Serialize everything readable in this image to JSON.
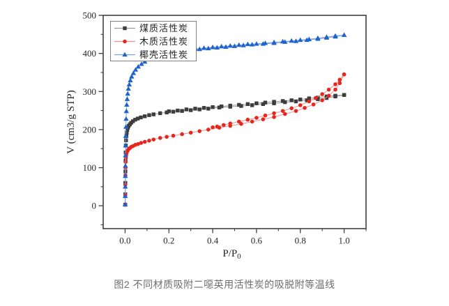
{
  "figure": {
    "caption": "图2 不同材质吸附二噁英用活性炭的吸脱附等温线"
  },
  "chart_data": {
    "type": "scatter",
    "title": "",
    "xlabel": "P/P",
    "xlabel_subscript": "0",
    "ylabel": "V (cm3/g STP)",
    "xlim": [
      -0.1,
      1.1
    ],
    "ylim": [
      -60,
      500
    ],
    "grid": false,
    "legend_position": "top-left",
    "x_major_ticks": [
      0.0,
      0.2,
      0.4,
      0.6,
      0.8,
      1.0
    ],
    "x_tick_labels": [
      "0.0",
      "0.2",
      "0.4",
      "0.6",
      "0.8",
      "1.0"
    ],
    "x_minor_ticks": [
      0.1,
      0.3,
      0.5,
      0.7,
      0.9,
      1.1
    ],
    "y_major_ticks": [
      0,
      100,
      200,
      300,
      400,
      500
    ],
    "y_tick_labels": [
      "0",
      "100",
      "200",
      "300",
      "400",
      "500"
    ],
    "y_minor_ticks": [
      -50,
      50,
      150,
      250,
      350,
      450
    ],
    "axis_color": "#3f3f3f",
    "tick_label_color": "#262626",
    "series": [
      {
        "name": "煤质活性炭",
        "marker": "square",
        "color": "#3d3d3d",
        "line_color": "#9a9a9a",
        "branches": {
          "adsorption": [
            [
              0.0005,
              3
            ],
            [
              0.0008,
              30
            ],
            [
              0.0011,
              60
            ],
            [
              0.0015,
              90
            ],
            [
              0.002,
              118
            ],
            [
              0.0026,
              140
            ],
            [
              0.0034,
              158
            ],
            [
              0.0044,
              172
            ],
            [
              0.0058,
              183
            ],
            [
              0.0075,
              192
            ],
            [
              0.0098,
              199
            ],
            [
              0.013,
              205
            ],
            [
              0.017,
              210
            ],
            [
              0.022,
              214
            ],
            [
              0.028,
              218
            ],
            [
              0.036,
              222
            ],
            [
              0.046,
              226
            ],
            [
              0.058,
              229
            ],
            [
              0.072,
              232
            ],
            [
              0.09,
              235
            ],
            [
              0.11,
              238
            ],
            [
              0.13,
              240
            ],
            [
              0.16,
              243
            ],
            [
              0.19,
              245
            ],
            [
              0.22,
              247
            ],
            [
              0.26,
              249
            ],
            [
              0.3,
              251
            ],
            [
              0.34,
              253
            ],
            [
              0.38,
              255
            ],
            [
              0.43,
              258
            ],
            [
              0.48,
              260
            ],
            [
              0.53,
              262
            ],
            [
              0.58,
              264
            ],
            [
              0.63,
              267
            ],
            [
              0.68,
              269
            ],
            [
              0.73,
              272
            ],
            [
              0.78,
              274
            ],
            [
              0.83,
              277
            ],
            [
              0.88,
              280
            ],
            [
              0.92,
              283
            ],
            [
              0.96,
              287
            ],
            [
              1.0,
              291
            ]
          ],
          "desorption": [
            [
              1.0,
              291
            ],
            [
              0.96,
              289
            ],
            [
              0.92,
              287
            ],
            [
              0.88,
              284
            ],
            [
              0.84,
              282
            ],
            [
              0.8,
              279
            ],
            [
              0.76,
              277
            ],
            [
              0.72,
              275
            ],
            [
              0.68,
              273
            ],
            [
              0.64,
              271
            ],
            [
              0.6,
              269
            ],
            [
              0.56,
              267
            ],
            [
              0.52,
              265
            ],
            [
              0.48,
              263
            ],
            [
              0.44,
              261
            ],
            [
              0.4,
              259
            ],
            [
              0.36,
              257
            ],
            [
              0.32,
              255
            ],
            [
              0.28,
              253
            ],
            [
              0.24,
              250
            ],
            [
              0.2,
              248
            ]
          ]
        }
      },
      {
        "name": "木质活性炭",
        "marker": "circle",
        "color": "#e7271e",
        "line_color": "#f0918c",
        "branches": {
          "adsorption": [
            [
              0.0005,
              3
            ],
            [
              0.0008,
              28
            ],
            [
              0.0011,
              55
            ],
            [
              0.0015,
              80
            ],
            [
              0.002,
              100
            ],
            [
              0.0027,
              115
            ],
            [
              0.0036,
              125
            ],
            [
              0.0048,
              132
            ],
            [
              0.0063,
              137
            ],
            [
              0.0082,
              141
            ],
            [
              0.011,
              144
            ],
            [
              0.014,
              147
            ],
            [
              0.018,
              150
            ],
            [
              0.023,
              152
            ],
            [
              0.029,
              155
            ],
            [
              0.037,
              157
            ],
            [
              0.047,
              160
            ],
            [
              0.059,
              162
            ],
            [
              0.073,
              165
            ],
            [
              0.09,
              168
            ],
            [
              0.11,
              171
            ],
            [
              0.13,
              174
            ],
            [
              0.16,
              178
            ],
            [
              0.19,
              181
            ],
            [
              0.22,
              184
            ],
            [
              0.26,
              188
            ],
            [
              0.3,
              192
            ],
            [
              0.34,
              196
            ],
            [
              0.38,
              200
            ],
            [
              0.43,
              205
            ],
            [
              0.48,
              210
            ],
            [
              0.53,
              215
            ],
            [
              0.58,
              221
            ],
            [
              0.63,
              227
            ],
            [
              0.68,
              233
            ],
            [
              0.73,
              241
            ],
            [
              0.78,
              249
            ],
            [
              0.82,
              257
            ],
            [
              0.86,
              266
            ],
            [
              0.9,
              277
            ],
            [
              0.93,
              289
            ],
            [
              0.96,
              305
            ],
            [
              0.98,
              322
            ],
            [
              1.0,
              345
            ]
          ],
          "desorption": [
            [
              1.0,
              345
            ],
            [
              0.98,
              331
            ],
            [
              0.96,
              319
            ],
            [
              0.93,
              305
            ],
            [
              0.9,
              293
            ],
            [
              0.87,
              283
            ],
            [
              0.84,
              274
            ],
            [
              0.8,
              264
            ],
            [
              0.76,
              256
            ],
            [
              0.72,
              249
            ],
            [
              0.68,
              243
            ],
            [
              0.64,
              237
            ],
            [
              0.6,
              231
            ],
            [
              0.56,
              226
            ],
            [
              0.52,
              221
            ],
            [
              0.48,
              216
            ],
            [
              0.45,
              212
            ],
            [
              0.42,
              208
            ],
            [
              0.4,
              206
            ]
          ]
        }
      },
      {
        "name": "椰壳活性炭",
        "marker": "triangle",
        "color": "#1f63cc",
        "line_color": "#7ba3e3",
        "branches": {
          "adsorption": [
            [
              0.0005,
              3
            ],
            [
              0.0007,
              25
            ],
            [
              0.0009,
              50
            ],
            [
              0.0012,
              78
            ],
            [
              0.0015,
              105
            ],
            [
              0.0019,
              132
            ],
            [
              0.0024,
              158
            ],
            [
              0.003,
              183
            ],
            [
              0.0038,
              207
            ],
            [
              0.0048,
              228
            ],
            [
              0.006,
              248
            ],
            [
              0.0075,
              265
            ],
            [
              0.0095,
              280
            ],
            [
              0.012,
              294
            ],
            [
              0.015,
              307
            ],
            [
              0.019,
              318
            ],
            [
              0.024,
              329
            ],
            [
              0.03,
              339
            ],
            [
              0.038,
              348
            ],
            [
              0.048,
              357
            ],
            [
              0.06,
              365
            ],
            [
              0.075,
              372
            ],
            [
              0.09,
              378
            ],
            [
              0.11,
              384
            ],
            [
              0.13,
              389
            ],
            [
              0.16,
              394
            ],
            [
              0.19,
              398
            ],
            [
              0.22,
              401
            ],
            [
              0.26,
              405
            ],
            [
              0.3,
              408
            ],
            [
              0.34,
              411
            ],
            [
              0.38,
              413
            ],
            [
              0.42,
              415
            ],
            [
              0.46,
              417
            ],
            [
              0.5,
              419
            ],
            [
              0.54,
              421
            ],
            [
              0.58,
              423
            ],
            [
              0.63,
              425
            ],
            [
              0.68,
              427
            ],
            [
              0.73,
              430
            ],
            [
              0.78,
              432
            ],
            [
              0.83,
              435
            ],
            [
              0.88,
              438
            ],
            [
              0.92,
              441
            ],
            [
              0.96,
              444
            ],
            [
              1.0,
              448
            ]
          ],
          "desorption": [
            [
              1.0,
              448
            ],
            [
              0.96,
              446
            ],
            [
              0.92,
              443
            ],
            [
              0.88,
              440
            ],
            [
              0.84,
              437
            ],
            [
              0.8,
              435
            ],
            [
              0.76,
              433
            ],
            [
              0.72,
              431
            ],
            [
              0.68,
              429
            ],
            [
              0.64,
              427
            ],
            [
              0.6,
              425
            ],
            [
              0.56,
              424
            ],
            [
              0.52,
              422
            ],
            [
              0.48,
              420
            ],
            [
              0.44,
              418
            ],
            [
              0.4,
              416
            ],
            [
              0.36,
              414
            ],
            [
              0.32,
              412
            ],
            [
              0.28,
              409
            ],
            [
              0.24,
              406
            ]
          ]
        }
      }
    ]
  }
}
